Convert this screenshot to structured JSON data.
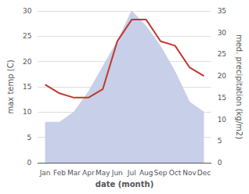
{
  "chart_data": {
    "type": "line",
    "xlabel": "date (month)",
    "ylabel": "max temp (C)",
    "y2label": "med. precipitation (kg/m2)",
    "categories": [
      "Jan",
      "Feb",
      "Mar",
      "Apr",
      "May",
      "Jun",
      "Jul",
      "Aug",
      "Sep",
      "Oct",
      "Nov",
      "Dec"
    ],
    "series": [
      {
        "type": "area",
        "color": "#c8cfe8",
        "values": [
          8,
          8,
          10,
          14,
          19,
          24,
          30,
          27,
          23,
          18,
          12,
          10
        ]
      },
      {
        "type": "line",
        "color": "#c0392b",
        "axis": "y2",
        "values": [
          18,
          16,
          15,
          15,
          17,
          28,
          33,
          33,
          28,
          27,
          22,
          20
        ]
      }
    ],
    "ylim": [
      0,
      30
    ],
    "yticks": [
      0,
      5,
      10,
      15,
      20,
      25,
      30
    ],
    "y2lim": [
      0,
      35
    ],
    "y2ticks": [
      0,
      5,
      10,
      15,
      20,
      25,
      30,
      35
    ],
    "grid": true
  }
}
